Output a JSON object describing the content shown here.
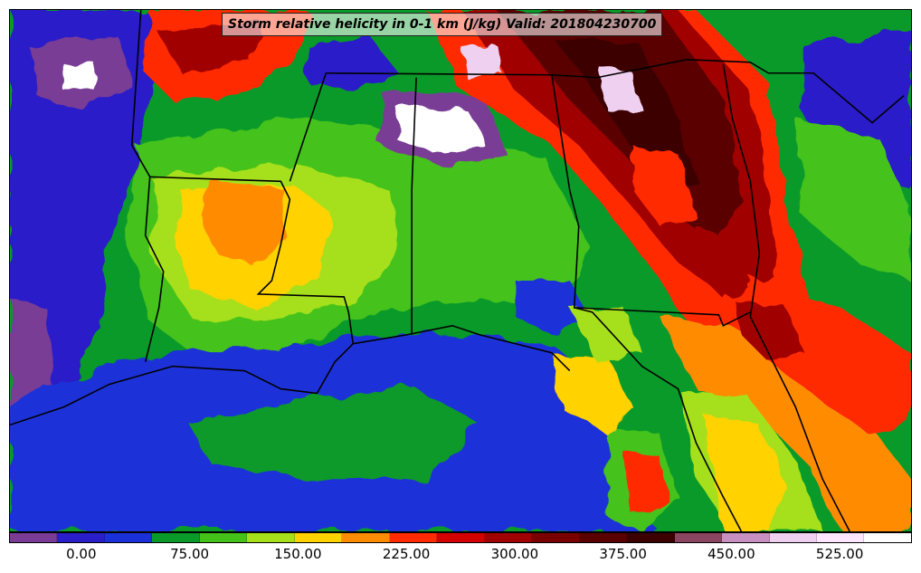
{
  "title": "Storm relative helicity in 0-1 km (J/kg) Valid: 201804230700",
  "colorbar": {
    "colors": [
      "#7a3c96",
      "#2a1ec8",
      "#1a30d8",
      "#0a9a2a",
      "#45c21a",
      "#a6e01a",
      "#ffd200",
      "#ff8c00",
      "#ff2a00",
      "#d40000",
      "#a00000",
      "#7a0000",
      "#5a0000",
      "#3c0000",
      "#8a4660",
      "#c890c0",
      "#f0d0f0",
      "#ffe6ff",
      "#ffffff"
    ],
    "ticks": [
      {
        "value": "0.00",
        "pos": 0.08
      },
      {
        "value": "75.00",
        "pos": 0.2
      },
      {
        "value": "150.00",
        "pos": 0.32
      },
      {
        "value": "225.00",
        "pos": 0.44
      },
      {
        "value": "300.00",
        "pos": 0.56
      },
      {
        "value": "375.00",
        "pos": 0.68
      },
      {
        "value": "450.00",
        "pos": 0.8
      },
      {
        "value": "525.00",
        "pos": 0.92
      }
    ]
  }
}
